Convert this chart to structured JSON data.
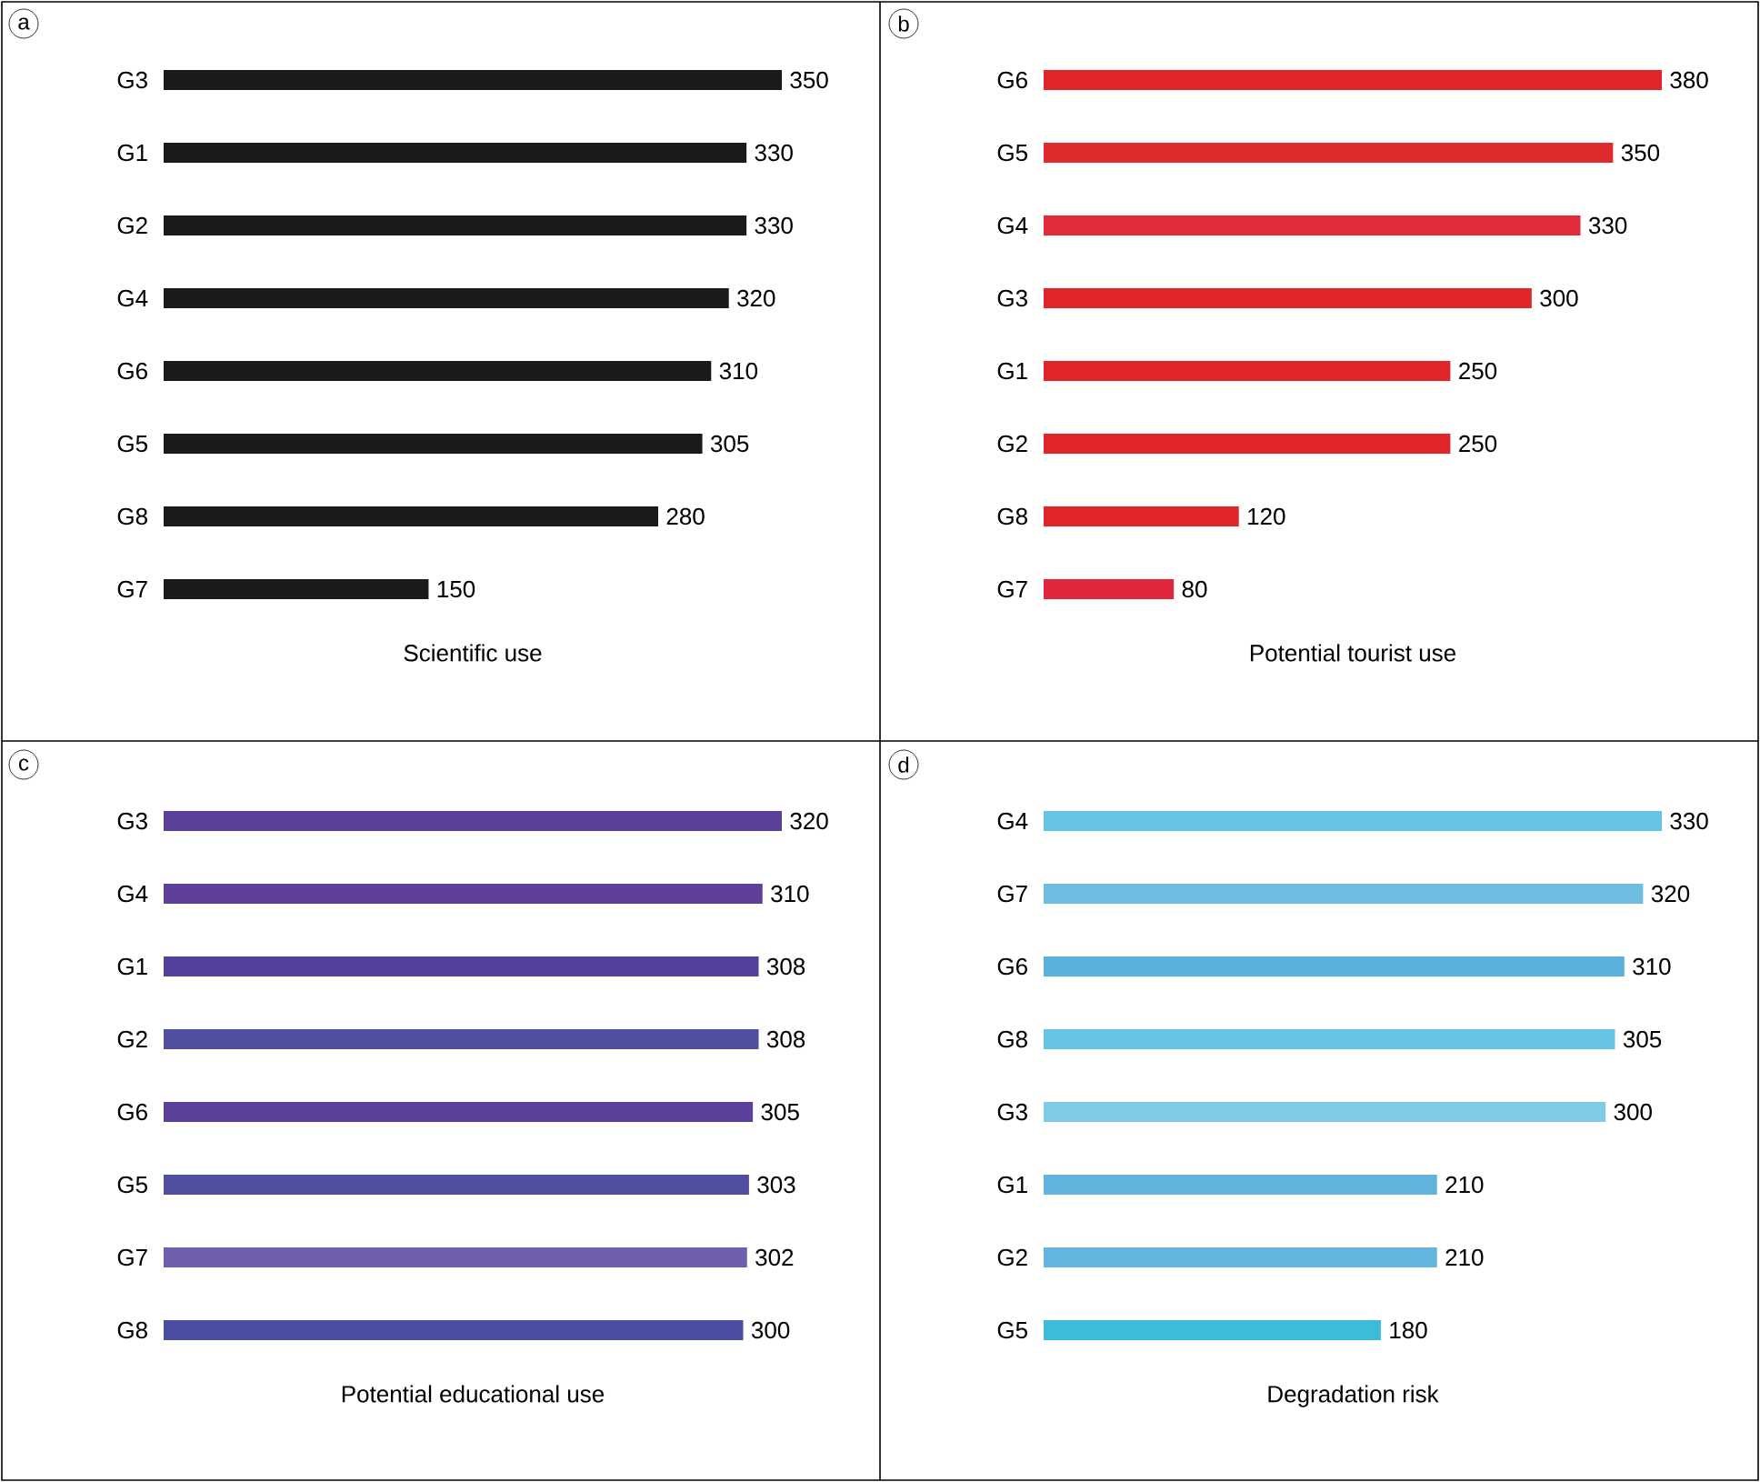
{
  "chart_data": [
    {
      "type": "bar",
      "orientation": "horizontal",
      "xlabel": "Scientific use",
      "annotations": [
        "a"
      ],
      "data_labels": true,
      "categories": [
        "G3",
        "G1",
        "G2",
        "G4",
        "G6",
        "G5",
        "G8",
        "G7"
      ],
      "values": [
        350,
        330,
        330,
        320,
        310,
        305,
        280,
        150
      ],
      "colors": [
        "#1a1a1a",
        "#1a1a1a",
        "#1a1a1a",
        "#1a1a1a",
        "#1a1a1a",
        "#1a1a1a",
        "#1a1a1a",
        "#1a1a1a"
      ]
    },
    {
      "type": "bar",
      "orientation": "horizontal",
      "xlabel": "Potential tourist use",
      "annotations": [
        "b"
      ],
      "data_labels": true,
      "categories": [
        "G6",
        "G5",
        "G4",
        "G3",
        "G1",
        "G2",
        "G8",
        "G7"
      ],
      "values": [
        380,
        350,
        330,
        300,
        250,
        250,
        120,
        80
      ],
      "colors": [
        "#e0262b",
        "#df2a2e",
        "#e32c3a",
        "#e0262b",
        "#e0262b",
        "#e0262b",
        "#e0262b",
        "#e0263a"
      ]
    },
    {
      "type": "bar",
      "orientation": "horizontal",
      "xlabel": "Potential educational use",
      "annotations": [
        "c"
      ],
      "data_labels": true,
      "categories": [
        "G3",
        "G4",
        "G1",
        "G2",
        "G6",
        "G5",
        "G7",
        "G8"
      ],
      "values": [
        320,
        310,
        308,
        308,
        305,
        303,
        302,
        300
      ],
      "colors": [
        "#5b3f9b",
        "#5f3f9c",
        "#53409a",
        "#4f4ea0",
        "#5b3f9b",
        "#4f4ea0",
        "#6f5fae",
        "#4a4ea0"
      ]
    },
    {
      "type": "bar",
      "orientation": "horizontal",
      "xlabel": "Degradation risk",
      "annotations": [
        "d"
      ],
      "data_labels": true,
      "categories": [
        "G4",
        "G7",
        "G6",
        "G8",
        "G3",
        "G1",
        "G2",
        "G5"
      ],
      "values": [
        330,
        320,
        310,
        305,
        300,
        210,
        210,
        180
      ],
      "colors": [
        "#66c3e3",
        "#6cbde0",
        "#5aafdc",
        "#66c3e3",
        "#7ecbe5",
        "#60b4db",
        "#62b5dc",
        "#3dbbd8"
      ]
    }
  ]
}
